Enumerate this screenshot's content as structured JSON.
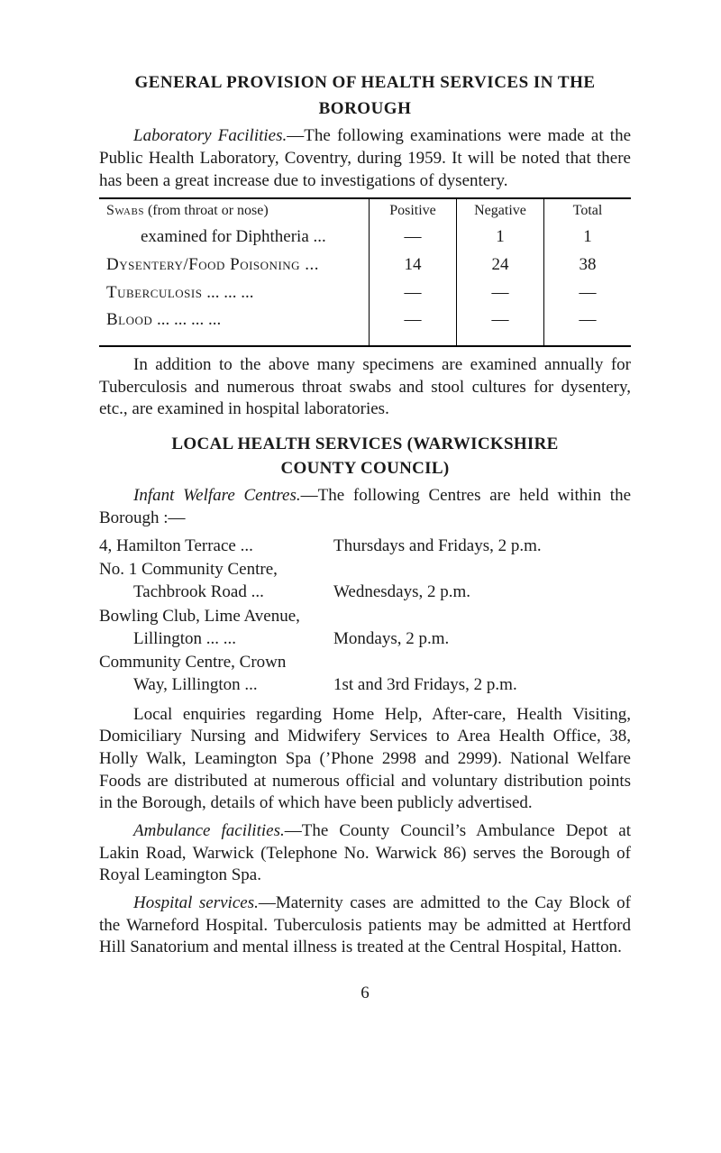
{
  "heading": {
    "line1": "GENERAL PROVISION OF HEALTH SERVICES IN THE",
    "line2": "BOROUGH"
  },
  "intro": {
    "lead": "Laboratory Facilities.",
    "rest": "—The following examinations were made at the Public Health Laboratory, Coventry, during 1959. It will be noted that there has been a great increase due to investigations of dysentery."
  },
  "table": {
    "head": {
      "c1": "Positive",
      "c2": "Negative",
      "c3": "Total"
    },
    "rows": [
      {
        "label_a": "Swabs",
        "label_b": "(from throat or nose)",
        "indent": "examined for Diphtheria   ...",
        "c1": "—",
        "c2": "1",
        "c3": "1"
      },
      {
        "label_a": "Dysentery/Food Poisoning ...",
        "c1": "14",
        "c2": "24",
        "c3": "38"
      },
      {
        "label_a": "Tuberculosis",
        "label_b": "...       ...       ...",
        "c1": "—",
        "c2": "—",
        "c3": "—"
      },
      {
        "label_a": "Blood",
        "label_b": "      ...       ...       ...       ...",
        "c1": "—",
        "c2": "—",
        "c3": "—"
      }
    ]
  },
  "after_table": {
    "text": "In addition to the above many specimens are examined annually for Tuberculosis and numerous throat swabs and stool cultures for dysentery, etc., are examined in hospital laboratories."
  },
  "sub_heading": {
    "line1": "LOCAL HEALTH SERVICES (WARWICKSHIRE",
    "line2": "COUNTY COUNCIL)"
  },
  "centres_intro": {
    "lead": "Infant Welfare Centres.",
    "rest": "—The following Centres are held within the Borough :—"
  },
  "centres": [
    {
      "left_main": "4, Hamilton Terrace",
      "left_dots": "        ...",
      "right": "Thursdays and Fridays, 2 p.m."
    },
    {
      "left_main": "No. 1 Community Centre,",
      "left_sub": "Tachbrook Road",
      "left_dots": "           ...",
      "right": "Wednesdays, 2 p.m."
    },
    {
      "left_main": "Bowling Club, Lime Avenue,",
      "left_sub": "Lillington",
      "left_dots": "              ...       ...",
      "right": "Mondays, 2 p.m."
    },
    {
      "left_main": "Community Centre, Crown",
      "left_sub": "Way, Lillington",
      "left_dots": "           ...",
      "right": "1st and 3rd Fridays, 2 p.m."
    }
  ],
  "paras": {
    "p1": {
      "indent": "Local enquiries regarding Home Help, After-care, Health",
      "rest": "Visiting, Domiciliary Nursing and Midwifery Services to Area Health Office, 38, Holly Walk, Leamington Spa (’Phone 2998 and 2999). National Welfare Foods are distributed at numerous official and voluntary distribution points in the Borough, details of which have been publicly advertised."
    },
    "p2": {
      "lead": "Ambulance facilities.",
      "rest": "—The County Council’s Ambulance Depot at Lakin Road, Warwick (Telephone No. Warwick 86) serves the Borough of Royal Leamington Spa."
    },
    "p3": {
      "lead": "Hospital services.",
      "rest": "—Maternity cases are admitted to the Cay Block of the Warneford Hospital. Tuberculosis patients may be admitted at Hertford Hill Sanatorium and mental illness is treated at the Central Hospital, Hatton."
    }
  },
  "page_number": "6"
}
